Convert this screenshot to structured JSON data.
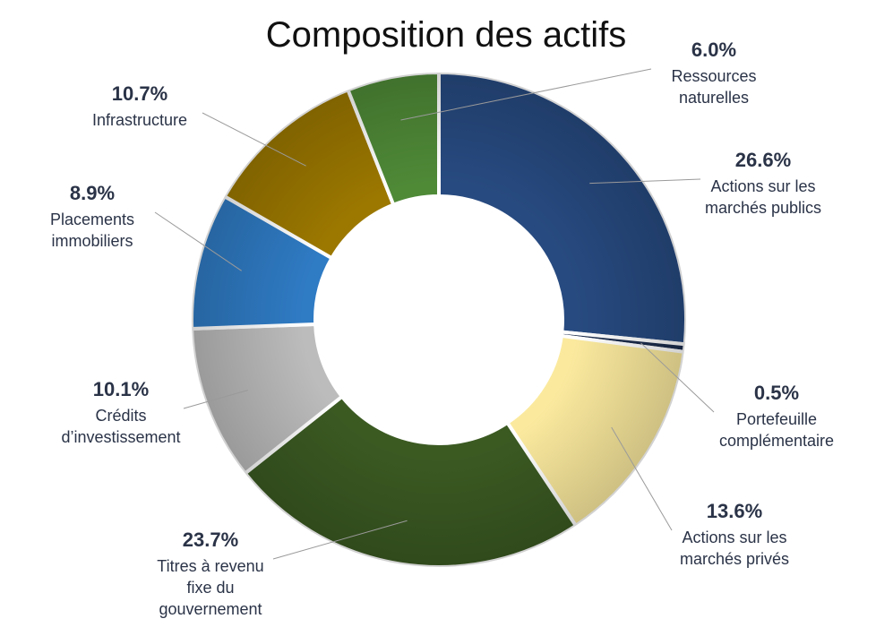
{
  "chart_data": {
    "type": "pie",
    "title": "Composition des actifs",
    "slices": [
      {
        "pct_label": "26.6%",
        "value": 26.6,
        "label_lines": [
          "Actions sur les",
          "marchés publics"
        ],
        "color": "#274a80"
      },
      {
        "pct_label": "0.5%",
        "value": 0.5,
        "label_lines": [
          "Portefeuille",
          "complémentaire"
        ],
        "color": "#1c2d4d"
      },
      {
        "pct_label": "13.6%",
        "value": 13.6,
        "label_lines": [
          "Actions sur les",
          "marchés privés"
        ],
        "color": "#fbea9e"
      },
      {
        "pct_label": "23.7%",
        "value": 23.7,
        "label_lines": [
          "Titres à revenu",
          "fixe du",
          "gouvernement"
        ],
        "color": "#3b5a22"
      },
      {
        "pct_label": "10.1%",
        "value": 10.1,
        "label_lines": [
          "Crédits",
          "d’investissement"
        ],
        "color": "#bdbcbc"
      },
      {
        "pct_label": "8.9%",
        "value": 8.9,
        "label_lines": [
          "Placements",
          "immobiliers"
        ],
        "color": "#2f7bc4"
      },
      {
        "pct_label": "10.7%",
        "value": 10.7,
        "label_lines": [
          "Infrastructure"
        ],
        "color": "#9c7800"
      },
      {
        "pct_label": "6.0%",
        "value": 6.0,
        "label_lines": [
          "Ressources",
          "naturelles"
        ],
        "color": "#4f8a37"
      }
    ]
  }
}
